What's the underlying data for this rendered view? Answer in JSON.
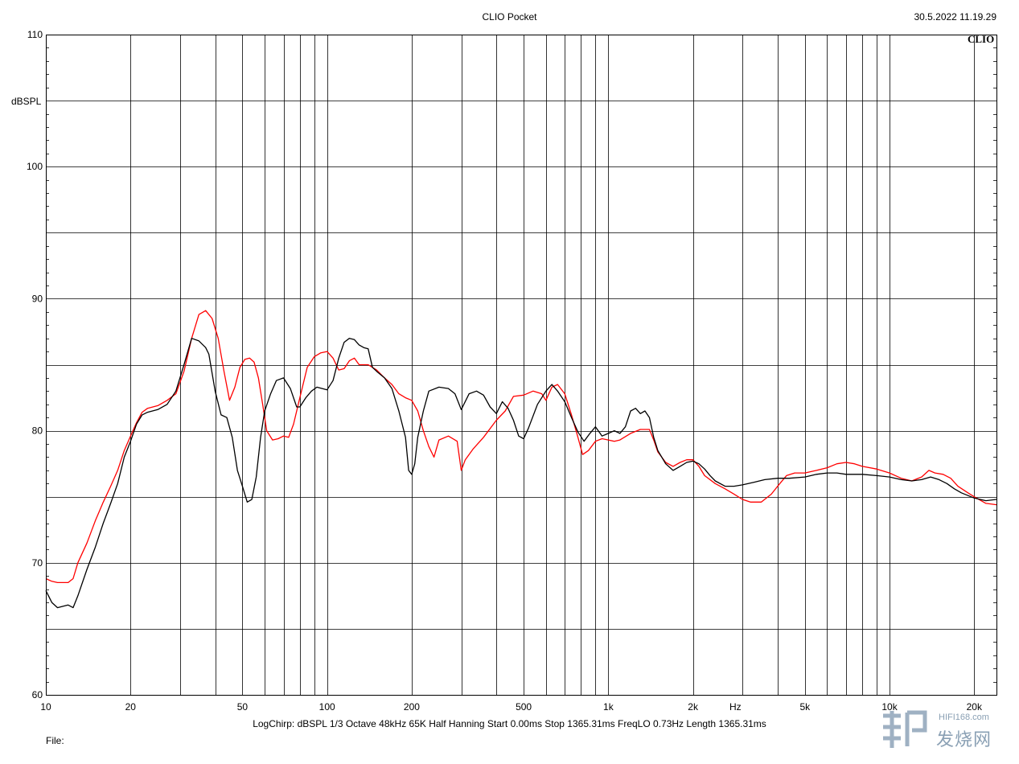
{
  "header": {
    "title": "CLIO Pocket",
    "timestamp": "30.5.2022 11.19.29",
    "brand": "CLIO"
  },
  "footer": {
    "params": "LogChirp:  dBSPL   1/3 Octave   48kHz   65K   Half Hanning   Start 0.00ms    Stop 1365.31ms    FreqLO 0.73Hz    Length 1365.31ms",
    "file_label": "File:"
  },
  "watermark": {
    "url": "HIFI168.com",
    "text": "发烧网"
  },
  "colors": {
    "series_black": "#000000",
    "series_red": "#ff0000",
    "grid": "#000000"
  },
  "chart_data": {
    "type": "line",
    "title": "CLIO Pocket",
    "xlabel": "Hz",
    "ylabel": "dBSPL",
    "x_scale": "log",
    "xlim": [
      10,
      24000
    ],
    "ylim": [
      60,
      110
    ],
    "grid": true,
    "y_ticks": [
      60,
      70,
      80,
      90,
      100,
      110
    ],
    "y_minor_ticks": [
      65,
      75,
      85,
      95,
      105
    ],
    "x_tick_labels": [
      {
        "value": 10,
        "label": "10"
      },
      {
        "value": 20,
        "label": "20"
      },
      {
        "value": 50,
        "label": "50"
      },
      {
        "value": 100,
        "label": "100"
      },
      {
        "value": 200,
        "label": "200"
      },
      {
        "value": 500,
        "label": "500"
      },
      {
        "value": 1000,
        "label": "1k"
      },
      {
        "value": 2000,
        "label": "2k"
      },
      {
        "value": 5000,
        "label": "5k"
      },
      {
        "value": 10000,
        "label": "10k"
      },
      {
        "value": 20000,
        "label": "20k"
      }
    ],
    "x_grid": [
      10,
      20,
      30,
      40,
      50,
      60,
      70,
      80,
      90,
      100,
      200,
      300,
      400,
      500,
      600,
      700,
      800,
      900,
      1000,
      2000,
      3000,
      4000,
      5000,
      6000,
      7000,
      8000,
      9000,
      10000,
      20000
    ],
    "series": [
      {
        "color": "#000000",
        "points": [
          [
            10,
            67.9
          ],
          [
            10.5,
            67.0
          ],
          [
            11,
            66.6
          ],
          [
            12,
            66.8
          ],
          [
            12.5,
            66.6
          ],
          [
            13,
            67.5
          ],
          [
            14,
            69.5
          ],
          [
            15,
            71.2
          ],
          [
            16,
            73.0
          ],
          [
            17,
            74.5
          ],
          [
            18,
            76.0
          ],
          [
            19,
            78.0
          ],
          [
            20,
            79.2
          ],
          [
            21,
            80.5
          ],
          [
            22,
            81.2
          ],
          [
            23,
            81.4
          ],
          [
            25,
            81.6
          ],
          [
            27,
            82.0
          ],
          [
            29,
            83.0
          ],
          [
            31,
            85.0
          ],
          [
            33,
            87.0
          ],
          [
            35,
            86.8
          ],
          [
            37,
            86.3
          ],
          [
            38,
            85.8
          ],
          [
            40,
            83.0
          ],
          [
            42,
            81.2
          ],
          [
            44,
            81.0
          ],
          [
            46,
            79.5
          ],
          [
            48,
            77.0
          ],
          [
            50,
            75.8
          ],
          [
            52,
            74.6
          ],
          [
            54,
            74.8
          ],
          [
            56,
            76.5
          ],
          [
            58,
            79.5
          ],
          [
            60,
            81.5
          ],
          [
            63,
            82.8
          ],
          [
            66,
            83.8
          ],
          [
            70,
            84.0
          ],
          [
            74,
            83.2
          ],
          [
            78,
            81.8
          ],
          [
            80,
            81.8
          ],
          [
            84,
            82.5
          ],
          [
            88,
            83.0
          ],
          [
            92,
            83.3
          ],
          [
            96,
            83.2
          ],
          [
            100,
            83.1
          ],
          [
            105,
            83.8
          ],
          [
            110,
            85.5
          ],
          [
            115,
            86.7
          ],
          [
            120,
            87.0
          ],
          [
            125,
            86.9
          ],
          [
            130,
            86.5
          ],
          [
            135,
            86.3
          ],
          [
            140,
            86.2
          ],
          [
            145,
            84.8
          ],
          [
            150,
            84.5
          ],
          [
            160,
            84.0
          ],
          [
            170,
            83.2
          ],
          [
            180,
            81.5
          ],
          [
            190,
            79.5
          ],
          [
            195,
            77.0
          ],
          [
            200,
            76.7
          ],
          [
            205,
            77.5
          ],
          [
            210,
            79.5
          ],
          [
            220,
            81.5
          ],
          [
            230,
            83.0
          ],
          [
            250,
            83.3
          ],
          [
            270,
            83.2
          ],
          [
            285,
            82.8
          ],
          [
            300,
            81.6
          ],
          [
            320,
            82.8
          ],
          [
            340,
            83.0
          ],
          [
            360,
            82.7
          ],
          [
            380,
            81.8
          ],
          [
            400,
            81.3
          ],
          [
            420,
            82.2
          ],
          [
            440,
            81.7
          ],
          [
            460,
            80.8
          ],
          [
            480,
            79.6
          ],
          [
            500,
            79.4
          ],
          [
            520,
            80.2
          ],
          [
            560,
            82.0
          ],
          [
            600,
            83.0
          ],
          [
            630,
            83.5
          ],
          [
            660,
            83.0
          ],
          [
            700,
            82.2
          ],
          [
            740,
            81.0
          ],
          [
            780,
            79.9
          ],
          [
            820,
            79.2
          ],
          [
            860,
            79.8
          ],
          [
            900,
            80.3
          ],
          [
            950,
            79.6
          ],
          [
            1000,
            79.8
          ],
          [
            1050,
            80.0
          ],
          [
            1100,
            79.8
          ],
          [
            1150,
            80.3
          ],
          [
            1200,
            81.5
          ],
          [
            1250,
            81.7
          ],
          [
            1300,
            81.3
          ],
          [
            1350,
            81.5
          ],
          [
            1400,
            81.0
          ],
          [
            1450,
            79.5
          ],
          [
            1500,
            78.5
          ],
          [
            1600,
            77.5
          ],
          [
            1700,
            77.0
          ],
          [
            1800,
            77.3
          ],
          [
            1900,
            77.6
          ],
          [
            2000,
            77.7
          ],
          [
            2100,
            77.5
          ],
          [
            2200,
            77.1
          ],
          [
            2300,
            76.6
          ],
          [
            2400,
            76.2
          ],
          [
            2600,
            75.8
          ],
          [
            2800,
            75.8
          ],
          [
            3000,
            75.9
          ],
          [
            3300,
            76.1
          ],
          [
            3600,
            76.3
          ],
          [
            4000,
            76.4
          ],
          [
            4400,
            76.4
          ],
          [
            5000,
            76.5
          ],
          [
            5500,
            76.7
          ],
          [
            6000,
            76.8
          ],
          [
            6500,
            76.8
          ],
          [
            7000,
            76.7
          ],
          [
            8000,
            76.7
          ],
          [
            9000,
            76.6
          ],
          [
            10000,
            76.5
          ],
          [
            11000,
            76.3
          ],
          [
            12000,
            76.2
          ],
          [
            13000,
            76.3
          ],
          [
            14000,
            76.5
          ],
          [
            15000,
            76.3
          ],
          [
            16000,
            76.0
          ],
          [
            17000,
            75.6
          ],
          [
            18000,
            75.3
          ],
          [
            20000,
            74.9
          ],
          [
            22000,
            74.7
          ],
          [
            24000,
            74.8
          ]
        ]
      },
      {
        "color": "#ff0000",
        "points": [
          [
            10,
            68.8
          ],
          [
            10.5,
            68.6
          ],
          [
            11,
            68.5
          ],
          [
            12,
            68.5
          ],
          [
            12.5,
            68.8
          ],
          [
            13,
            70.0
          ],
          [
            14,
            71.5
          ],
          [
            15,
            73.2
          ],
          [
            16,
            74.6
          ],
          [
            17,
            75.8
          ],
          [
            18,
            77.0
          ],
          [
            19,
            78.5
          ],
          [
            20,
            79.6
          ],
          [
            21,
            80.6
          ],
          [
            22,
            81.4
          ],
          [
            23,
            81.7
          ],
          [
            25,
            81.9
          ],
          [
            27,
            82.3
          ],
          [
            29,
            82.8
          ],
          [
            31,
            84.5
          ],
          [
            33,
            87.0
          ],
          [
            35,
            88.8
          ],
          [
            37,
            89.1
          ],
          [
            39,
            88.5
          ],
          [
            41,
            87.0
          ],
          [
            43,
            84.5
          ],
          [
            45,
            82.3
          ],
          [
            47,
            83.3
          ],
          [
            49,
            84.8
          ],
          [
            51,
            85.4
          ],
          [
            53,
            85.5
          ],
          [
            55,
            85.2
          ],
          [
            57,
            84.0
          ],
          [
            59,
            82.0
          ],
          [
            61,
            80.0
          ],
          [
            64,
            79.3
          ],
          [
            67,
            79.4
          ],
          [
            70,
            79.6
          ],
          [
            73,
            79.5
          ],
          [
            76,
            80.5
          ],
          [
            80,
            82.5
          ],
          [
            85,
            84.8
          ],
          [
            90,
            85.6
          ],
          [
            95,
            85.9
          ],
          [
            100,
            86.0
          ],
          [
            105,
            85.5
          ],
          [
            110,
            84.6
          ],
          [
            115,
            84.7
          ],
          [
            120,
            85.3
          ],
          [
            125,
            85.5
          ],
          [
            130,
            85.0
          ],
          [
            140,
            85.0
          ],
          [
            150,
            84.6
          ],
          [
            160,
            84.0
          ],
          [
            170,
            83.5
          ],
          [
            180,
            82.8
          ],
          [
            190,
            82.5
          ],
          [
            200,
            82.3
          ],
          [
            210,
            81.5
          ],
          [
            220,
            80.0
          ],
          [
            230,
            78.8
          ],
          [
            240,
            78.0
          ],
          [
            250,
            79.3
          ],
          [
            270,
            79.6
          ],
          [
            290,
            79.2
          ],
          [
            300,
            77.0
          ],
          [
            310,
            77.8
          ],
          [
            330,
            78.6
          ],
          [
            360,
            79.5
          ],
          [
            400,
            80.8
          ],
          [
            430,
            81.5
          ],
          [
            460,
            82.6
          ],
          [
            500,
            82.7
          ],
          [
            540,
            83.0
          ],
          [
            580,
            82.8
          ],
          [
            600,
            82.3
          ],
          [
            630,
            83.3
          ],
          [
            660,
            83.5
          ],
          [
            700,
            82.8
          ],
          [
            740,
            81.2
          ],
          [
            780,
            79.5
          ],
          [
            810,
            78.2
          ],
          [
            850,
            78.5
          ],
          [
            900,
            79.2
          ],
          [
            950,
            79.4
          ],
          [
            1000,
            79.3
          ],
          [
            1050,
            79.2
          ],
          [
            1100,
            79.3
          ],
          [
            1200,
            79.8
          ],
          [
            1300,
            80.1
          ],
          [
            1400,
            80.1
          ],
          [
            1450,
            79.3
          ],
          [
            1500,
            78.4
          ],
          [
            1600,
            77.6
          ],
          [
            1700,
            77.3
          ],
          [
            1800,
            77.6
          ],
          [
            1900,
            77.8
          ],
          [
            2000,
            77.8
          ],
          [
            2100,
            77.3
          ],
          [
            2200,
            76.6
          ],
          [
            2400,
            76.0
          ],
          [
            2600,
            75.6
          ],
          [
            2800,
            75.2
          ],
          [
            3000,
            74.8
          ],
          [
            3200,
            74.6
          ],
          [
            3500,
            74.6
          ],
          [
            3800,
            75.2
          ],
          [
            4000,
            75.8
          ],
          [
            4300,
            76.6
          ],
          [
            4600,
            76.8
          ],
          [
            5000,
            76.8
          ],
          [
            5500,
            77.0
          ],
          [
            6000,
            77.2
          ],
          [
            6500,
            77.5
          ],
          [
            7000,
            77.6
          ],
          [
            7500,
            77.5
          ],
          [
            8000,
            77.3
          ],
          [
            9000,
            77.1
          ],
          [
            10000,
            76.8
          ],
          [
            11000,
            76.4
          ],
          [
            12000,
            76.2
          ],
          [
            13000,
            76.5
          ],
          [
            13800,
            77.0
          ],
          [
            14500,
            76.8
          ],
          [
            15500,
            76.7
          ],
          [
            16500,
            76.4
          ],
          [
            17500,
            75.8
          ],
          [
            19000,
            75.3
          ],
          [
            20000,
            75.0
          ],
          [
            22000,
            74.5
          ],
          [
            24000,
            74.4
          ]
        ]
      }
    ]
  }
}
